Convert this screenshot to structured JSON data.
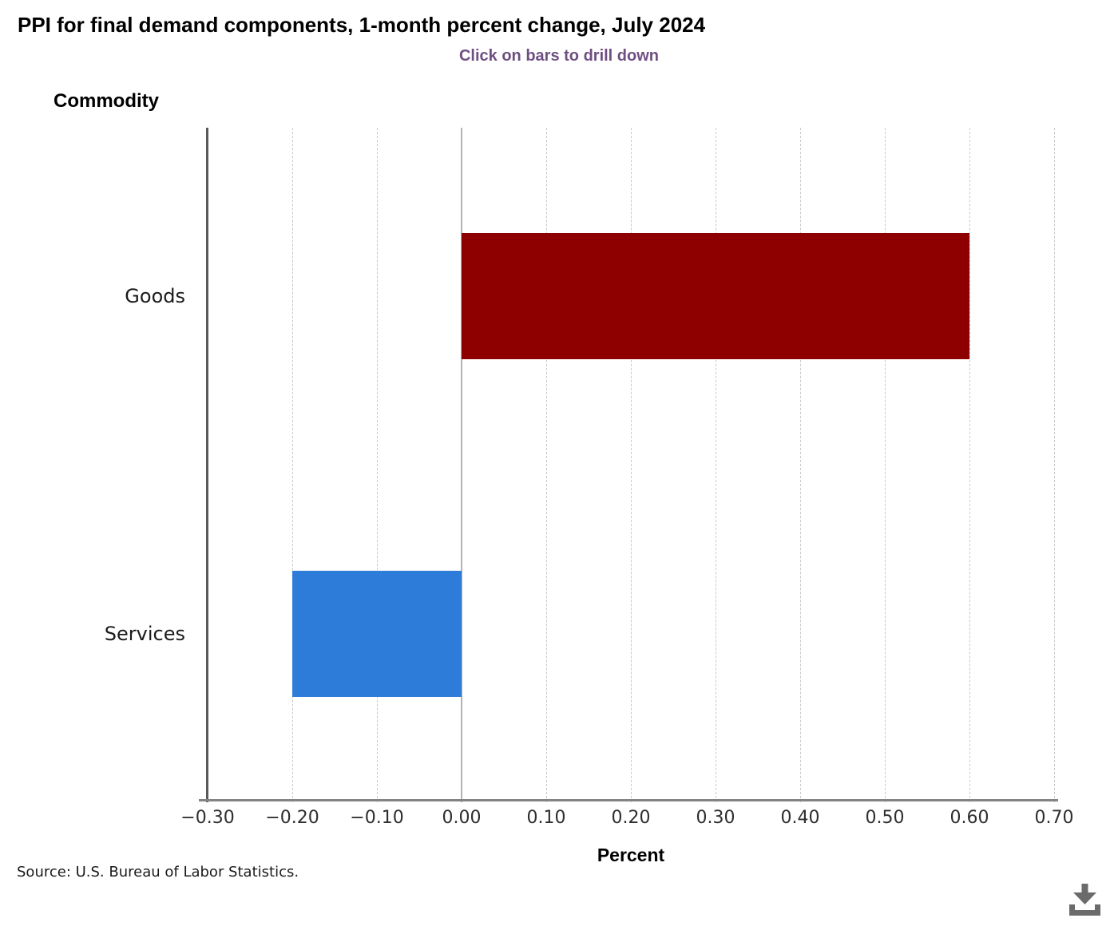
{
  "header": {
    "title": "PPI for final demand components, 1-month percent change, July 2024",
    "subtitle": "Click on bars to drill down"
  },
  "axes": {
    "y_title": "Commodity",
    "x_title": "Percent"
  },
  "footer": {
    "source": "Source: U.S. Bureau of Labor Statistics.",
    "download_icon": "download-icon"
  },
  "colors": {
    "subtitle": "#6f4f82",
    "goods_bar": "#8e0000",
    "services_bar": "#2e7cd9",
    "axis_line": "#5a5a5a",
    "gridline": "#c9c9c9",
    "zero_line": "#b3b3b3",
    "tick_label": "#2e2e2e",
    "download_icon_color": "#6b6b6b"
  },
  "chart_data": {
    "type": "bar",
    "orientation": "horizontal",
    "title": "PPI for final demand components, 1-month percent change, July 2024",
    "subtitle": "Click on bars to drill down",
    "categories": [
      "Goods",
      "Services"
    ],
    "values": [
      0.6,
      -0.2
    ],
    "bar_colors": [
      "#8e0000",
      "#2e7cd9"
    ],
    "xlabel": "Percent",
    "ylabel": "Commodity",
    "xlim": [
      -0.3,
      0.7
    ],
    "xtick_values": [
      -0.3,
      -0.2,
      -0.1,
      0.0,
      0.1,
      0.2,
      0.3,
      0.4,
      0.5,
      0.6,
      0.7
    ],
    "xtick_labels": [
      "−0.30",
      "−0.20",
      "−0.10",
      "0.00",
      "0.10",
      "0.20",
      "0.30",
      "0.40",
      "0.50",
      "0.60",
      "0.70"
    ],
    "grid": "vertical-dashed",
    "zero_line": true,
    "legend": "none"
  }
}
